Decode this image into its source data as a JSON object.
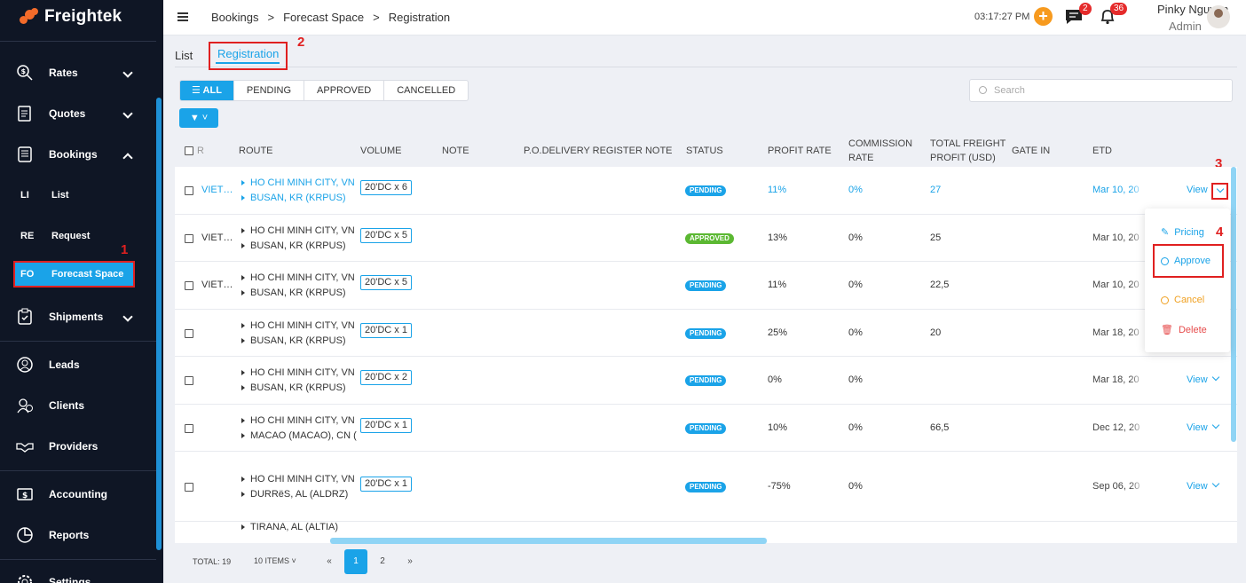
{
  "app": {
    "name": "Freightek"
  },
  "sidebar": {
    "items": [
      {
        "label": "Rates",
        "icon": "rates-icon"
      },
      {
        "label": "Quotes",
        "icon": "quotes-icon"
      },
      {
        "label": "Bookings",
        "icon": "bookings-icon"
      },
      {
        "label": "Shipments",
        "icon": "shipments-icon"
      },
      {
        "label": "Leads",
        "icon": "leads-icon"
      },
      {
        "label": "Clients",
        "icon": "clients-icon"
      },
      {
        "label": "Providers",
        "icon": "providers-icon"
      },
      {
        "label": "Accounting",
        "icon": "accounting-icon"
      },
      {
        "label": "Reports",
        "icon": "reports-icon"
      },
      {
        "label": "Settings",
        "icon": "settings-icon"
      }
    ],
    "sub_items": [
      {
        "abbr": "LI",
        "label": "List"
      },
      {
        "abbr": "RE",
        "label": "Request"
      },
      {
        "abbr": "FO",
        "label": "Forecast Space"
      }
    ]
  },
  "annotations": {
    "a1": "1",
    "a2": "2",
    "a3": "3",
    "a4": "4"
  },
  "header": {
    "breadcrumbs": [
      "Bookings",
      ">",
      "Forecast Space",
      ">",
      "Registration"
    ],
    "time": "03:17:27 PM",
    "messages_count": "2",
    "notifications_count": "36",
    "user_name": "Pinky Nguyen",
    "user_role": "Admin"
  },
  "tabs": {
    "list": "List",
    "registration": "Registration"
  },
  "filters": {
    "all": "ALL",
    "pending": "PENDING",
    "approved": "APPROVED",
    "cancelled": "CANCELLED"
  },
  "search": {
    "placeholder": "Search"
  },
  "table": {
    "headers": {
      "r": "R",
      "route": "ROUTE",
      "volume": "VOLUME",
      "note": "NOTE",
      "po_note": "P.O.DELIVERY REGISTER NOTE",
      "status": "STATUS",
      "profit_rate": "PROFIT RATE",
      "commission_rate": "COMMISSION RATE",
      "total_freight": "TOTAL FREIGHT PROFIT (USD)",
      "gate_in": "GATE IN",
      "etd": "ETD"
    },
    "rows": [
      {
        "carrier": "VIET…",
        "from": "HO CHI MINH CITY, VN",
        "to": "BUSAN, KR (KRPUS)",
        "volume": "20'DC x 6",
        "status": "PENDING",
        "profit": "11%",
        "commission": "0%",
        "total": "27",
        "etd": "Mar 10, 20",
        "view": "View"
      },
      {
        "carrier": "VIET…",
        "from": "HO CHI MINH CITY, VN",
        "to": "BUSAN, KR (KRPUS)",
        "volume": "20'DC x 5",
        "status": "APPROVED",
        "profit": "13%",
        "commission": "0%",
        "total": "25",
        "etd": "Mar 10, 20",
        "view": ""
      },
      {
        "carrier": "VIET…",
        "from": "HO CHI MINH CITY, VN",
        "to": "BUSAN, KR (KRPUS)",
        "volume": "20'DC x 5",
        "status": "PENDING",
        "profit": "11%",
        "commission": "0%",
        "total": "22,5",
        "etd": "Mar 10, 20",
        "view": ""
      },
      {
        "carrier": "",
        "from": "HO CHI MINH CITY, VN",
        "to": "BUSAN, KR (KRPUS)",
        "volume": "20'DC x 1",
        "status": "PENDING",
        "profit": "25%",
        "commission": "0%",
        "total": "20",
        "etd": "Mar 18, 20",
        "view": ""
      },
      {
        "carrier": "",
        "from": "HO CHI MINH CITY, VN",
        "to": "BUSAN, KR (KRPUS)",
        "volume": "20'DC x 2",
        "status": "PENDING",
        "profit": "0%",
        "commission": "0%",
        "total": "",
        "etd": "Mar 18, 20",
        "view": "View"
      },
      {
        "carrier": "",
        "from": "HO CHI MINH CITY, VN",
        "to": "MACAO (MACAO), CN (",
        "volume": "20'DC x 1",
        "status": "PENDING",
        "profit": "10%",
        "commission": "0%",
        "total": "66,5",
        "etd": "Dec 12, 20",
        "view": "View"
      },
      {
        "carrier": "",
        "from": "HO CHI MINH CITY, VN",
        "to": "DURRëS, AL (ALDRZ)",
        "volume": "20'DC x 1",
        "status": "PENDING",
        "profit": "-75%",
        "commission": "0%",
        "total": "",
        "etd": "Sep 06, 20",
        "view": "View"
      },
      {
        "carrier": "",
        "from": "TIRANA, AL (ALTIA)",
        "to": "",
        "volume": "",
        "status": "",
        "profit": "",
        "commission": "",
        "total": "",
        "etd": "",
        "view": ""
      }
    ]
  },
  "dropdown": {
    "pricing": "Pricing",
    "approve": "Approve",
    "cancel": "Cancel",
    "delete": "Delete"
  },
  "footer": {
    "total": "TOTAL: 19",
    "page_size": "10 ITEMS",
    "prev": "«",
    "page1": "1",
    "page2": "2",
    "next": "»"
  },
  "colors": {
    "accent": "#1aa3e8",
    "sidebar_bg": "#0f1625",
    "pending": "#1aa3e8",
    "approved": "#5bb832",
    "cancel": "#f0a020",
    "delete": "#e64b4b",
    "highlight": "#e02020"
  }
}
